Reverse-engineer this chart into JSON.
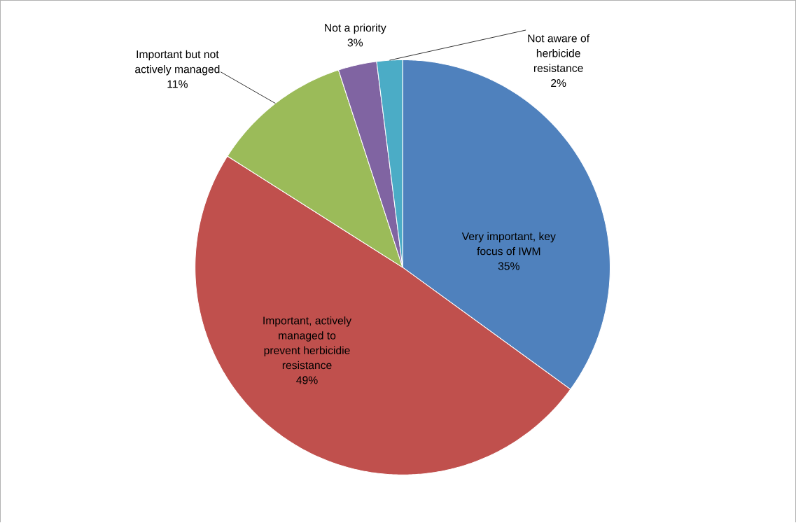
{
  "chart_data": {
    "type": "pie",
    "categories": [
      "Very important, key focus of IWM",
      "Important, actively managed to prevent herbicidie resistance",
      "Important but not actively managed",
      "Not a priority",
      "Not aware of herbicide resistance"
    ],
    "values": [
      35,
      49,
      11,
      3,
      2
    ],
    "value_labels": [
      "35%",
      "49%",
      "11%",
      "3%",
      "2%"
    ],
    "colors": [
      "#4f81bd",
      "#c0504d",
      "#9bbb59",
      "#8064a2",
      "#4bacc6"
    ]
  }
}
